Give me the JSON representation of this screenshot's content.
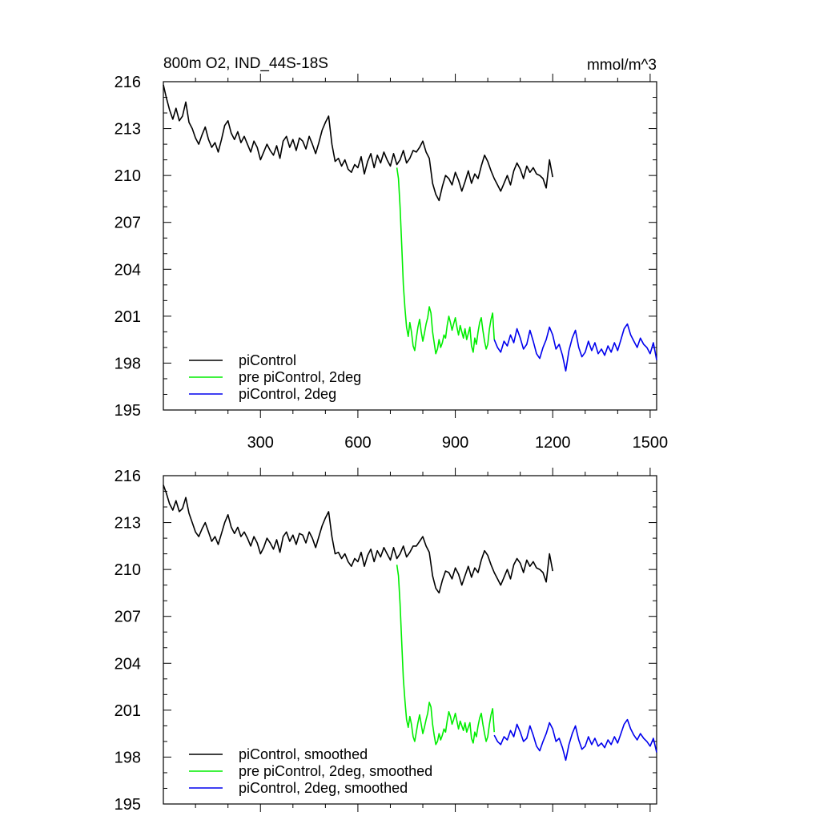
{
  "chart_data": [
    {
      "type": "line",
      "title": "800m O2, IND_44S-18S",
      "units": "mmol/m^3",
      "xlabel": "",
      "ylabel": "",
      "xlim": [
        1,
        1520
      ],
      "ylim": [
        195,
        216
      ],
      "xticks": [
        300,
        600,
        900,
        1200,
        1500
      ],
      "xtick_labels": [
        "300",
        "600",
        "900",
        "1200",
        "1500"
      ],
      "yticks": [
        195,
        198,
        201,
        204,
        207,
        210,
        213,
        216
      ],
      "ytick_labels": [
        "195",
        "198",
        "201",
        "204",
        "207",
        "210",
        "213",
        "216"
      ],
      "grid": false,
      "legend_position": "bottom-left",
      "series": [
        {
          "name": "piControl",
          "color": "#000000",
          "x": [
            1,
            10,
            20,
            30,
            40,
            50,
            60,
            70,
            80,
            90,
            100,
            110,
            120,
            130,
            140,
            150,
            160,
            170,
            180,
            190,
            200,
            210,
            220,
            230,
            240,
            250,
            260,
            270,
            280,
            290,
            300,
            310,
            320,
            330,
            340,
            350,
            360,
            370,
            380,
            390,
            400,
            410,
            420,
            430,
            440,
            450,
            460,
            470,
            480,
            490,
            500,
            510,
            520,
            530,
            540,
            550,
            560,
            570,
            580,
            590,
            600,
            610,
            620,
            630,
            640,
            650,
            660,
            670,
            680,
            690,
            700,
            710,
            720,
            730,
            740,
            750,
            760,
            770,
            780,
            790,
            800,
            810,
            820,
            830,
            840,
            850,
            860,
            870,
            880,
            890,
            900,
            910,
            920,
            930,
            940,
            950,
            960,
            970,
            980,
            990,
            1000,
            1010,
            1020,
            1030,
            1040,
            1050,
            1060,
            1070,
            1080,
            1090,
            1100,
            1110,
            1120,
            1130,
            1140,
            1150,
            1160,
            1170,
            1180,
            1190,
            1200
          ],
          "y": [
            215.8,
            215.0,
            214.2,
            213.6,
            214.3,
            213.5,
            213.8,
            214.7,
            213.4,
            213.0,
            212.4,
            212.0,
            212.6,
            213.1,
            212.3,
            211.8,
            212.1,
            211.5,
            212.3,
            213.2,
            213.5,
            212.7,
            212.3,
            212.8,
            212.1,
            212.5,
            212.0,
            211.5,
            212.2,
            211.8,
            211.0,
            211.5,
            212.0,
            211.6,
            211.3,
            211.9,
            211.1,
            212.2,
            212.5,
            211.8,
            212.3,
            211.6,
            212.4,
            212.2,
            211.7,
            212.5,
            212.0,
            211.4,
            212.1,
            212.9,
            213.4,
            213.8,
            212.0,
            210.9,
            211.1,
            210.6,
            211.0,
            210.4,
            210.2,
            210.7,
            210.5,
            211.2,
            210.1,
            210.9,
            211.4,
            210.5,
            211.3,
            210.8,
            211.5,
            211.0,
            210.6,
            211.4,
            210.7,
            211.0,
            211.6,
            210.8,
            211.1,
            211.6,
            211.5,
            211.8,
            212.2,
            211.5,
            211.1,
            209.5,
            208.8,
            208.4,
            209.3,
            210.0,
            209.8,
            209.4,
            210.2,
            209.7,
            209.0,
            209.6,
            210.3,
            209.5,
            210.1,
            209.8,
            210.6,
            211.3,
            210.9,
            210.3,
            209.8,
            209.4,
            209.0,
            209.5,
            210.0,
            209.4,
            210.3,
            210.8,
            210.4,
            209.8,
            210.6,
            210.2,
            210.5,
            210.1,
            210.0,
            209.8,
            209.2,
            211.0,
            209.9
          ]
        },
        {
          "name": "pre piControl, 2deg",
          "color": "#00ee00",
          "x": [
            720,
            725,
            730,
            735,
            740,
            745,
            750,
            755,
            760,
            765,
            770,
            775,
            780,
            785,
            790,
            795,
            800,
            805,
            810,
            815,
            820,
            825,
            830,
            835,
            840,
            845,
            850,
            855,
            860,
            865,
            870,
            875,
            880,
            885,
            890,
            895,
            900,
            905,
            910,
            915,
            920,
            925,
            930,
            935,
            940,
            945,
            950,
            955,
            960,
            965,
            970,
            975,
            980,
            985,
            990,
            995,
            1000,
            1005,
            1010,
            1015,
            1020
          ],
          "y": [
            210.5,
            209.8,
            208.0,
            205.5,
            203.0,
            201.5,
            200.3,
            199.7,
            200.6,
            200.0,
            199.1,
            198.8,
            199.6,
            200.3,
            200.8,
            200.0,
            199.4,
            199.9,
            200.5,
            200.9,
            201.6,
            201.2,
            200.0,
            199.3,
            198.6,
            198.9,
            199.5,
            199.0,
            199.3,
            199.8,
            199.6,
            200.4,
            201.0,
            200.6,
            200.1,
            200.5,
            200.9,
            200.3,
            199.8,
            200.4,
            200.0,
            199.6,
            200.2,
            199.5,
            199.9,
            200.3,
            199.1,
            198.7,
            199.6,
            199.2,
            200.0,
            200.6,
            200.9,
            200.1,
            199.4,
            198.9,
            199.2,
            200.2,
            200.8,
            201.2,
            199.5
          ]
        },
        {
          "name": "piControl, 2deg",
          "color": "#0000ee",
          "x": [
            1020,
            1030,
            1040,
            1050,
            1060,
            1070,
            1080,
            1090,
            1100,
            1110,
            1120,
            1130,
            1140,
            1150,
            1160,
            1170,
            1180,
            1190,
            1200,
            1210,
            1220,
            1230,
            1240,
            1250,
            1260,
            1270,
            1280,
            1290,
            1300,
            1310,
            1320,
            1330,
            1340,
            1350,
            1360,
            1370,
            1380,
            1390,
            1400,
            1410,
            1420,
            1430,
            1440,
            1450,
            1460,
            1470,
            1480,
            1490,
            1500,
            1510,
            1520
          ],
          "y": [
            199.5,
            199.0,
            198.7,
            199.4,
            199.1,
            199.8,
            199.3,
            200.2,
            199.6,
            198.9,
            199.2,
            200.1,
            199.4,
            198.6,
            198.3,
            199.0,
            199.5,
            200.3,
            199.8,
            198.9,
            199.2,
            198.5,
            197.5,
            198.8,
            199.6,
            200.1,
            199.0,
            198.4,
            198.7,
            199.4,
            198.8,
            199.3,
            198.6,
            198.9,
            198.5,
            199.1,
            198.7,
            199.3,
            198.8,
            199.5,
            200.2,
            200.5,
            199.8,
            199.4,
            199.0,
            199.6,
            199.2,
            199.0,
            198.6,
            199.3,
            198.2
          ]
        }
      ]
    },
    {
      "type": "line",
      "title": "",
      "xlabel": "",
      "ylabel": "",
      "xlim": [
        1,
        1520
      ],
      "ylim": [
        195,
        216
      ],
      "xticks": [
        300,
        600,
        900,
        1200,
        1500
      ],
      "xtick_labels": [],
      "yticks": [
        195,
        198,
        201,
        204,
        207,
        210,
        213,
        216
      ],
      "ytick_labels": [
        "195",
        "198",
        "201",
        "204",
        "207",
        "210",
        "213",
        "216"
      ],
      "grid": false,
      "legend_position": "bottom-left",
      "series": [
        {
          "name": "piControl, smoothed",
          "color": "#000000",
          "x": [
            1,
            10,
            20,
            30,
            40,
            50,
            60,
            70,
            80,
            90,
            100,
            110,
            120,
            130,
            140,
            150,
            160,
            170,
            180,
            190,
            200,
            210,
            220,
            230,
            240,
            250,
            260,
            270,
            280,
            290,
            300,
            310,
            320,
            330,
            340,
            350,
            360,
            370,
            380,
            390,
            400,
            410,
            420,
            430,
            440,
            450,
            460,
            470,
            480,
            490,
            500,
            510,
            520,
            530,
            540,
            550,
            560,
            570,
            580,
            590,
            600,
            610,
            620,
            630,
            640,
            650,
            660,
            670,
            680,
            690,
            700,
            710,
            720,
            730,
            740,
            750,
            760,
            770,
            780,
            790,
            800,
            810,
            820,
            830,
            840,
            850,
            860,
            870,
            880,
            890,
            900,
            910,
            920,
            930,
            940,
            950,
            960,
            970,
            980,
            990,
            1000,
            1010,
            1020,
            1030,
            1040,
            1050,
            1060,
            1070,
            1080,
            1090,
            1100,
            1110,
            1120,
            1130,
            1140,
            1150,
            1160,
            1170,
            1180,
            1190,
            1200
          ],
          "y": [
            215.4,
            214.9,
            214.2,
            213.8,
            214.4,
            213.7,
            213.9,
            214.6,
            213.6,
            213.0,
            212.4,
            212.1,
            212.6,
            213.0,
            212.4,
            211.8,
            212.1,
            211.6,
            212.3,
            213.0,
            213.5,
            212.7,
            212.3,
            212.7,
            212.1,
            212.4,
            212.0,
            211.5,
            212.1,
            211.7,
            211.0,
            211.4,
            212.0,
            211.7,
            211.3,
            211.9,
            211.1,
            212.1,
            212.4,
            211.8,
            212.2,
            211.6,
            212.3,
            212.2,
            211.7,
            212.4,
            212.0,
            211.4,
            212.1,
            212.8,
            213.3,
            213.7,
            212.1,
            211.0,
            211.1,
            210.7,
            211.0,
            210.5,
            210.2,
            210.7,
            210.5,
            211.1,
            210.2,
            210.9,
            211.3,
            210.5,
            211.2,
            210.8,
            211.4,
            211.0,
            210.6,
            211.4,
            210.7,
            211.0,
            211.5,
            210.8,
            211.1,
            211.5,
            211.5,
            211.8,
            212.1,
            211.5,
            211.1,
            209.6,
            208.8,
            208.5,
            209.3,
            209.9,
            209.8,
            209.4,
            210.1,
            209.7,
            209.0,
            209.6,
            210.2,
            209.5,
            210.1,
            209.8,
            210.6,
            211.2,
            210.9,
            210.3,
            209.8,
            209.4,
            209.0,
            209.5,
            210.0,
            209.4,
            210.3,
            210.7,
            210.4,
            209.8,
            210.6,
            210.2,
            210.5,
            210.1,
            210.0,
            209.8,
            209.2,
            211.0,
            209.9
          ]
        },
        {
          "name": "pre piControl, 2deg, smoothed",
          "color": "#00ee00",
          "x": [
            720,
            725,
            730,
            735,
            740,
            745,
            750,
            755,
            760,
            765,
            770,
            775,
            780,
            785,
            790,
            795,
            800,
            805,
            810,
            815,
            820,
            825,
            830,
            835,
            840,
            845,
            850,
            855,
            860,
            865,
            870,
            875,
            880,
            885,
            890,
            895,
            900,
            905,
            910,
            915,
            920,
            925,
            930,
            935,
            940,
            945,
            950,
            955,
            960,
            965,
            970,
            975,
            980,
            985,
            990,
            995,
            1000,
            1005,
            1010,
            1015,
            1020
          ],
          "y": [
            210.3,
            209.6,
            207.8,
            205.3,
            203.0,
            201.6,
            200.4,
            199.9,
            200.6,
            200.1,
            199.3,
            199.0,
            199.6,
            200.2,
            200.7,
            200.1,
            199.5,
            199.9,
            200.4,
            200.8,
            201.5,
            201.2,
            200.1,
            199.4,
            198.8,
            199.0,
            199.5,
            199.1,
            199.4,
            199.8,
            199.6,
            200.3,
            200.9,
            200.6,
            200.1,
            200.4,
            200.8,
            200.3,
            199.8,
            200.3,
            200.0,
            199.7,
            200.2,
            199.6,
            199.9,
            200.2,
            199.2,
            198.9,
            199.6,
            199.3,
            200.0,
            200.5,
            200.8,
            200.1,
            199.5,
            199.0,
            199.3,
            200.1,
            200.7,
            201.1,
            199.6
          ]
        },
        {
          "name": "piControl, 2deg, smoothed",
          "color": "#0000ee",
          "x": [
            1020,
            1030,
            1040,
            1050,
            1060,
            1070,
            1080,
            1090,
            1100,
            1110,
            1120,
            1130,
            1140,
            1150,
            1160,
            1170,
            1180,
            1190,
            1200,
            1210,
            1220,
            1230,
            1240,
            1250,
            1260,
            1270,
            1280,
            1290,
            1300,
            1310,
            1320,
            1330,
            1340,
            1350,
            1360,
            1370,
            1380,
            1390,
            1400,
            1410,
            1420,
            1430,
            1440,
            1450,
            1460,
            1470,
            1480,
            1490,
            1500,
            1510,
            1520
          ],
          "y": [
            199.4,
            199.0,
            198.8,
            199.3,
            199.1,
            199.7,
            199.3,
            200.1,
            199.6,
            199.0,
            199.2,
            200.0,
            199.4,
            198.7,
            198.4,
            199.0,
            199.5,
            200.2,
            199.8,
            199.0,
            199.2,
            198.6,
            197.8,
            198.8,
            199.5,
            200.0,
            199.1,
            198.5,
            198.7,
            199.3,
            198.8,
            199.2,
            198.7,
            198.9,
            198.6,
            199.1,
            198.8,
            199.3,
            198.9,
            199.5,
            200.1,
            200.4,
            199.8,
            199.4,
            199.1,
            199.5,
            199.2,
            199.0,
            198.7,
            199.2,
            198.3
          ]
        }
      ]
    }
  ]
}
